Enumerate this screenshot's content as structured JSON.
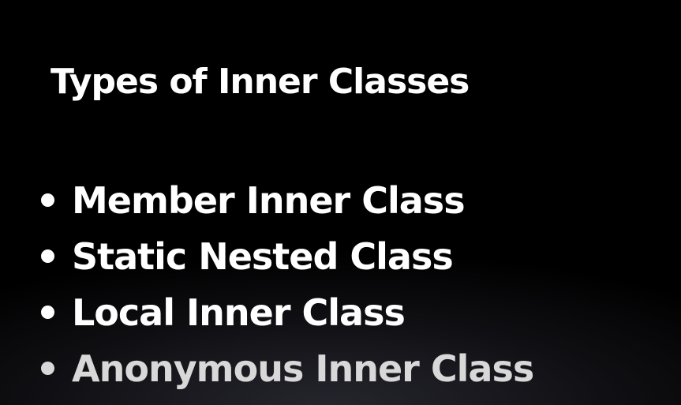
{
  "slide": {
    "title": "Types of Inner Classes",
    "bullets": [
      {
        "label": "Member Inner Class"
      },
      {
        "label": "Static Nested Class"
      },
      {
        "label": "Local Inner Class"
      },
      {
        "label": "Anonymous Inner Class"
      }
    ]
  },
  "colors": {
    "background": "#000000",
    "text": "#ffffff",
    "dimmed_text": "#d8d8d8"
  }
}
